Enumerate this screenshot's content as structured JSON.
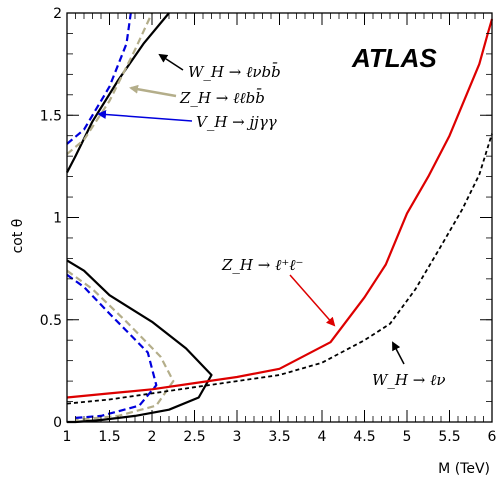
{
  "chart_data": {
    "type": "line",
    "title": "",
    "xlabel": "M (TeV)",
    "ylabel": "cot θ",
    "xlim": [
      1,
      6
    ],
    "ylim": [
      0,
      2
    ],
    "x_ticks": [
      "1",
      "1.5",
      "2",
      "2.5",
      "3",
      "3.5",
      "4",
      "4.5",
      "5",
      "5.5",
      "6"
    ],
    "y_ticks": [
      "0",
      "0.5",
      "1",
      "1.5",
      "2"
    ],
    "grid": false,
    "experiment_label": "ATLAS",
    "annotations": [
      {
        "text": "W_H → ℓνbb̄",
        "color": "#000000"
      },
      {
        "text": "Z_H → ℓℓbb̄",
        "color": "#b4ae8a"
      },
      {
        "text": "V_H → jjγγ",
        "color": "#0000dd"
      },
      {
        "text": "Z_H → ℓ⁺ℓ⁻",
        "color": "#dd0000"
      },
      {
        "text": "W_H → ℓν",
        "color": "#000000"
      }
    ],
    "series": [
      {
        "color": "#000000",
        "style": "solid",
        "segments": [
          [
            [
              1.0,
              1.22
            ],
            [
              1.1,
              1.3
            ],
            [
              1.3,
              1.47
            ],
            [
              1.6,
              1.67
            ],
            [
              1.9,
              1.85
            ],
            [
              2.2,
              2.0
            ]
          ],
          [
            [
              1.0,
              0.79
            ],
            [
              1.2,
              0.74
            ],
            [
              1.5,
              0.62
            ],
            [
              2.0,
              0.49
            ],
            [
              2.4,
              0.36
            ],
            [
              2.7,
              0.23
            ],
            [
              2.55,
              0.12
            ],
            [
              2.2,
              0.06
            ],
            [
              1.8,
              0.03
            ],
            [
              1.4,
              0.01
            ],
            [
              1.1,
              0.0
            ],
            [
              1.0,
              0.0
            ]
          ]
        ]
      },
      {
        "color": "#b4ae8a",
        "style": "dashed",
        "segments": [
          [
            [
              1.0,
              1.31
            ],
            [
              1.2,
              1.38
            ],
            [
              1.5,
              1.57
            ],
            [
              1.8,
              1.82
            ],
            [
              2.0,
              2.0
            ]
          ],
          [
            [
              1.0,
              0.74
            ],
            [
              1.3,
              0.65
            ],
            [
              1.7,
              0.49
            ],
            [
              2.1,
              0.32
            ],
            [
              2.25,
              0.2
            ],
            [
              2.05,
              0.08
            ],
            [
              1.6,
              0.03
            ],
            [
              1.1,
              0.01
            ]
          ]
        ]
      },
      {
        "color": "#0000dd",
        "style": "dashed",
        "segments": [
          [
            [
              1.0,
              1.36
            ],
            [
              1.2,
              1.43
            ],
            [
              1.5,
              1.64
            ],
            [
              1.7,
              1.85
            ],
            [
              1.75,
              2.0
            ]
          ],
          [
            [
              1.0,
              0.72
            ],
            [
              1.2,
              0.66
            ],
            [
              1.5,
              0.53
            ],
            [
              1.95,
              0.34
            ],
            [
              2.05,
              0.18
            ],
            [
              1.85,
              0.08
            ],
            [
              1.4,
              0.03
            ],
            [
              1.1,
              0.02
            ]
          ]
        ]
      },
      {
        "name": "Z_H → ℓ⁺ℓ⁻",
        "color": "#dd0000",
        "style": "solid",
        "segments": [
          [
            [
              1.0,
              0.12
            ],
            [
              1.5,
              0.14
            ],
            [
              2.0,
              0.16
            ],
            [
              2.5,
              0.19
            ],
            [
              3.0,
              0.22
            ],
            [
              3.5,
              0.26
            ],
            [
              4.1,
              0.39
            ],
            [
              4.5,
              0.61
            ],
            [
              4.75,
              0.77
            ],
            [
              5.0,
              1.02
            ],
            [
              5.25,
              1.2
            ],
            [
              5.5,
              1.4
            ],
            [
              5.7,
              1.6
            ],
            [
              5.85,
              1.75
            ],
            [
              5.95,
              1.9
            ],
            [
              6.0,
              1.97
            ]
          ]
        ]
      },
      {
        "name": "W_H → ℓν",
        "color": "#000000",
        "style": "dotted",
        "segments": [
          [
            [
              1.0,
              0.09
            ],
            [
              1.5,
              0.11
            ],
            [
              2.0,
              0.14
            ],
            [
              2.5,
              0.17
            ],
            [
              3.0,
              0.2
            ],
            [
              3.5,
              0.23
            ],
            [
              4.0,
              0.29
            ],
            [
              4.5,
              0.4
            ],
            [
              4.8,
              0.48
            ],
            [
              5.1,
              0.65
            ],
            [
              5.4,
              0.86
            ],
            [
              5.65,
              1.04
            ],
            [
              5.85,
              1.21
            ],
            [
              6.0,
              1.41
            ]
          ]
        ]
      }
    ]
  }
}
